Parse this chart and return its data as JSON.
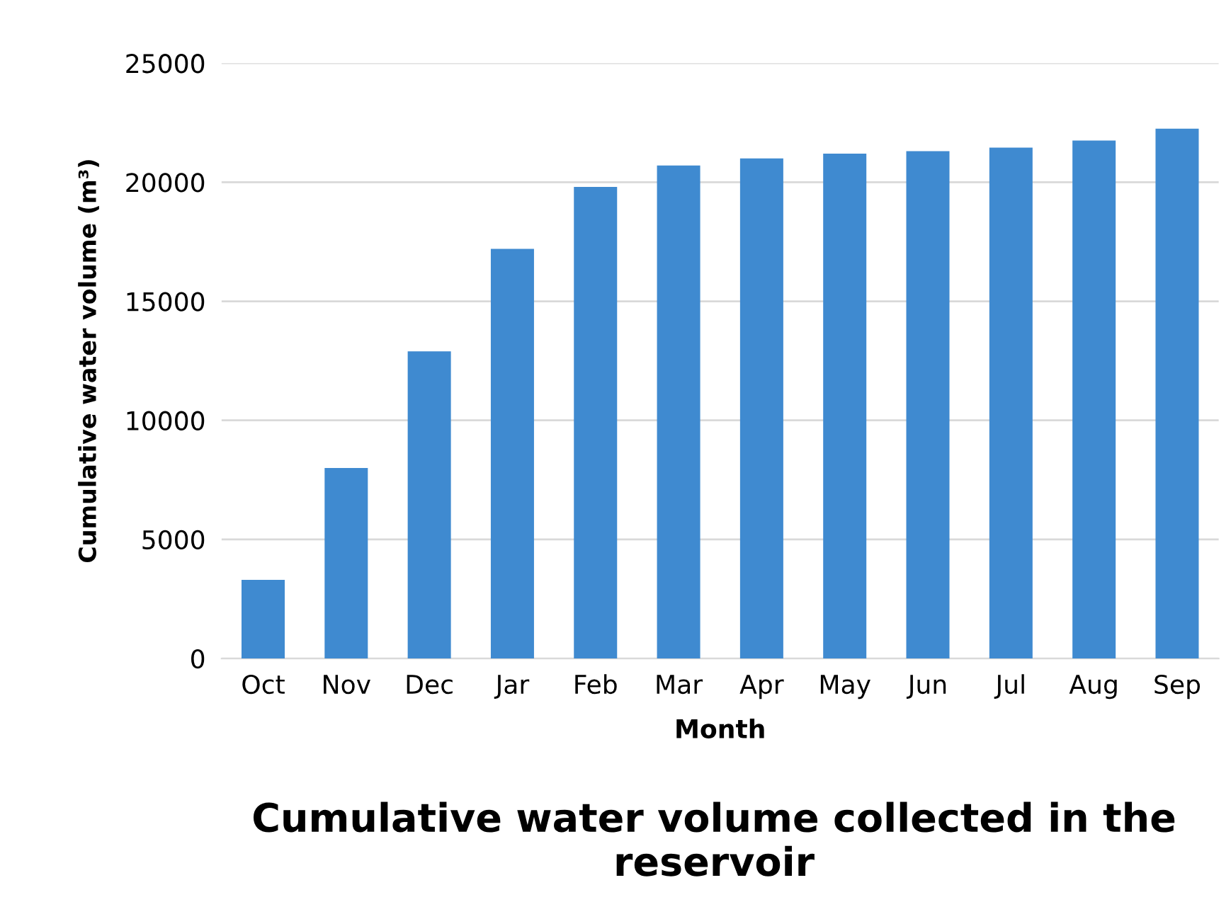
{
  "chart_data": {
    "type": "bar",
    "title": "Cumulative water volume collected in the reservoir",
    "xlabel": "Month",
    "ylabel": "Cumulative water volume (m³)",
    "categories": [
      "Oct",
      "Nov",
      "Dec",
      "Jar",
      "Feb",
      "Mar",
      "Apr",
      "May",
      "Jun",
      "Jul",
      "Aug",
      "Sep"
    ],
    "values": [
      3300,
      8000,
      12900,
      17200,
      19800,
      20700,
      21000,
      21200,
      21300,
      21450,
      21750,
      22250
    ],
    "color": "#3f8ad0",
    "ylim": [
      0,
      25000
    ],
    "yticks": [
      0,
      5000,
      10000,
      15000,
      20000,
      25000
    ],
    "grid": "y"
  }
}
